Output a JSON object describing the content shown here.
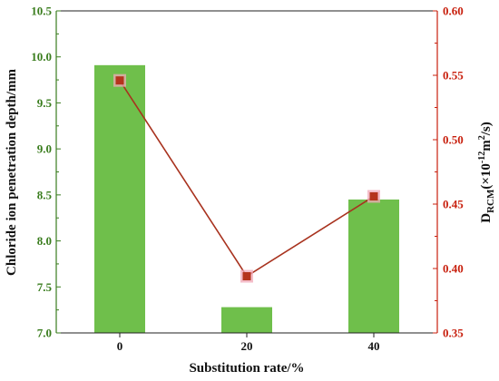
{
  "chart_data": {
    "type": "bar",
    "categories": [
      "0",
      "20",
      "40"
    ],
    "xlabel": "Substitution rate/%",
    "series": [
      {
        "type": "bar",
        "axis": "left",
        "values": [
          9.91,
          7.28,
          8.45
        ]
      },
      {
        "type": "line",
        "axis": "right",
        "values": [
          0.546,
          0.394,
          0.456
        ]
      }
    ],
    "y_left": {
      "label": "Chloride ion penetration depth/mm",
      "lim": [
        7.0,
        10.5
      ],
      "ticks": [
        "7.0",
        "7.5",
        "8.0",
        "8.5",
        "9.0",
        "9.5",
        "10.0",
        "10.5"
      ]
    },
    "y_right": {
      "label_main": "D",
      "label_sub": "RCM",
      "label_mid": "(×10",
      "label_sup1": "-12",
      "label_m": "m",
      "label_sup2": "2",
      "label_end": "/s)",
      "lim": [
        0.35,
        0.6
      ],
      "ticks": [
        "0.35",
        "0.40",
        "0.45",
        "0.50",
        "0.55",
        "0.60"
      ]
    },
    "grid": false,
    "legend": "none"
  },
  "colors": {
    "bar_fill": "#6fbf4b",
    "left_axis": "#3a7d1e",
    "right_axis": "#c8200e",
    "line": "#a8321e",
    "marker": "#b5341c",
    "marker_halo": "#f0a8b8",
    "frame": "#222222"
  }
}
